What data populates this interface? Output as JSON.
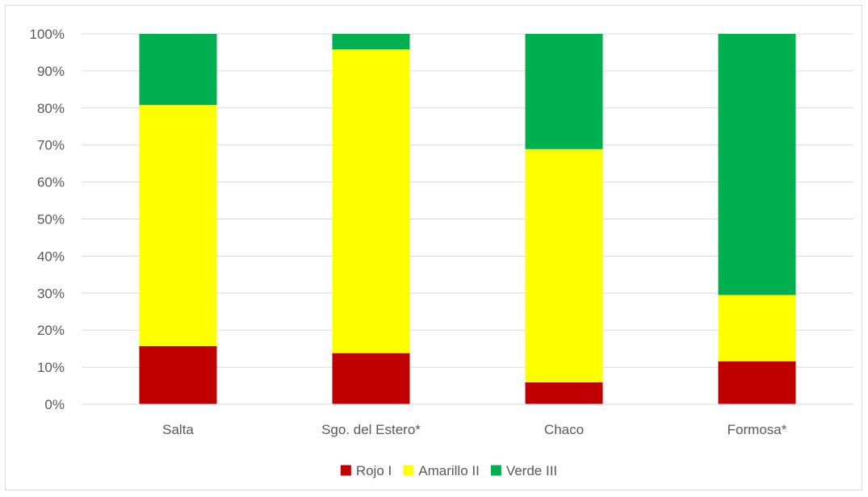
{
  "chart_data": {
    "type": "bar",
    "stacked": true,
    "percent_stacked": true,
    "categories": [
      "Salta",
      "Sgo. del Estero*",
      "Chaco",
      "Formosa*"
    ],
    "series": [
      {
        "name": "Rojo I",
        "color": "#c00000",
        "values": [
          15.7,
          13.8,
          5.9,
          11.6
        ]
      },
      {
        "name": "Amarillo II",
        "color": "#ffff00",
        "values": [
          65.1,
          82.0,
          63.0,
          17.9
        ]
      },
      {
        "name": "Verde III",
        "color": "#00b050",
        "values": [
          19.2,
          4.2,
          31.1,
          70.5
        ]
      }
    ],
    "ylim": [
      0,
      100
    ],
    "yticks": [
      "0%",
      "10%",
      "20%",
      "30%",
      "40%",
      "50%",
      "60%",
      "70%",
      "80%",
      "90%",
      "100%"
    ],
    "grid": true,
    "legend": "bottom"
  }
}
